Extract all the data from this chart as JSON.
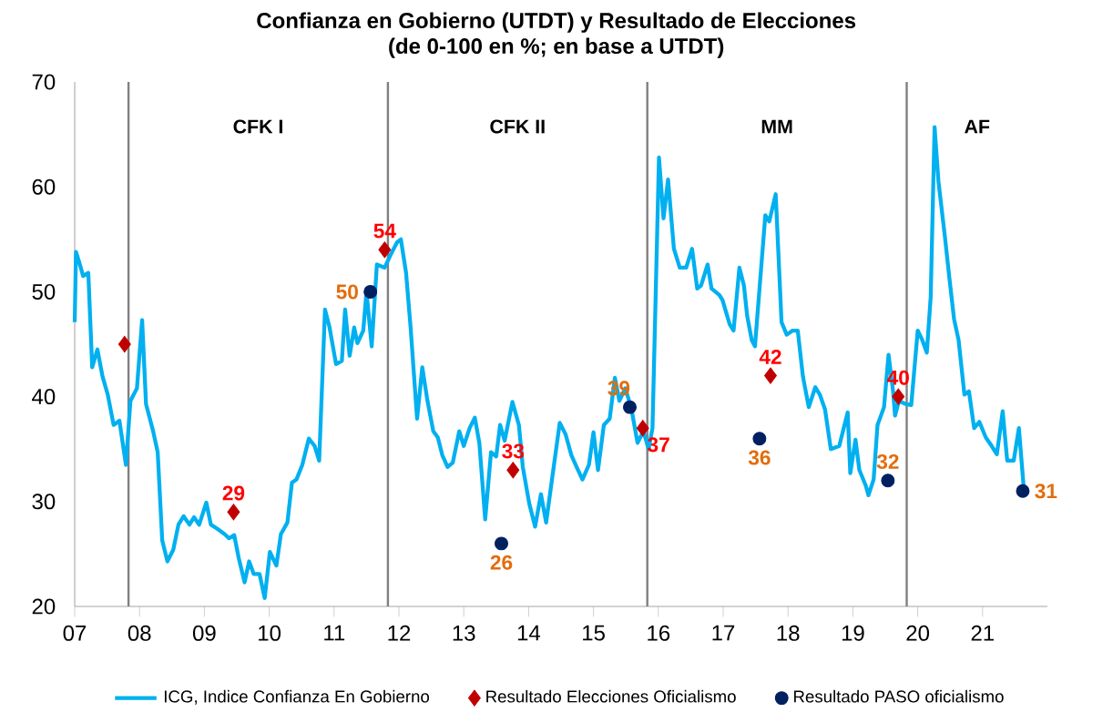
{
  "chart_data": {
    "type": "line",
    "title": "Confianza en Gobierno (UTDT) y Resultado de Elecciones",
    "subtitle": "(de 0-100 en %; en base a UTDT)",
    "xlim": [
      2007,
      2022
    ],
    "ylim": [
      20,
      70
    ],
    "xticks": [
      {
        "value": 2007,
        "label": "07"
      },
      {
        "value": 2008,
        "label": "08"
      },
      {
        "value": 2009,
        "label": "09"
      },
      {
        "value": 2010,
        "label": "10"
      },
      {
        "value": 2011,
        "label": "11"
      },
      {
        "value": 2012,
        "label": "12"
      },
      {
        "value": 2013,
        "label": "13"
      },
      {
        "value": 2014,
        "label": "14"
      },
      {
        "value": 2015,
        "label": "15"
      },
      {
        "value": 2016,
        "label": "16"
      },
      {
        "value": 2017,
        "label": "17"
      },
      {
        "value": 2018,
        "label": "18"
      },
      {
        "value": 2019,
        "label": "19"
      },
      {
        "value": 2020,
        "label": "20"
      },
      {
        "value": 2021,
        "label": "21"
      }
    ],
    "yticks": [
      20,
      30,
      40,
      50,
      60,
      70
    ],
    "legend": "bottom",
    "series": [
      {
        "name": "ICG, Indice Confianza En Gobierno",
        "color": "#00b0f0",
        "marker": "none",
        "x": [
          2007.0,
          2007.02,
          2007.08,
          2007.13,
          2007.21,
          2007.27,
          2007.35,
          2007.43,
          2007.51,
          2007.6,
          2007.69,
          2007.79,
          2007.86,
          2007.96,
          2008.04,
          2008.1,
          2008.21,
          2008.28,
          2008.35,
          2008.43,
          2008.52,
          2008.6,
          2008.68,
          2008.77,
          2008.84,
          2008.92,
          2009.03,
          2009.1,
          2009.2,
          2009.31,
          2009.38,
          2009.46,
          2009.53,
          2009.62,
          2009.69,
          2009.76,
          2009.85,
          2009.93,
          2010.01,
          2010.11,
          2010.18,
          2010.28,
          2010.35,
          2010.42,
          2010.51,
          2010.61,
          2010.7,
          2010.77,
          2010.86,
          2010.93,
          2011.03,
          2011.12,
          2011.17,
          2011.24,
          2011.31,
          2011.36,
          2011.45,
          2011.5,
          2011.58,
          2011.66,
          2011.78,
          2011.87,
          2011.97,
          2012.03,
          2012.11,
          2012.18,
          2012.28,
          2012.36,
          2012.44,
          2012.53,
          2012.6,
          2012.67,
          2012.75,
          2012.83,
          2012.93,
          2013.0,
          2013.09,
          2013.17,
          2013.24,
          2013.33,
          2013.42,
          2013.5,
          2013.56,
          2013.63,
          2013.75,
          2013.85,
          2013.91,
          2014.01,
          2014.1,
          2014.19,
          2014.27,
          2014.36,
          2014.48,
          2014.57,
          2014.66,
          2014.74,
          2014.83,
          2014.93,
          2015.0,
          2015.07,
          2015.16,
          2015.25,
          2015.33,
          2015.4,
          2015.49,
          2015.58,
          2015.68,
          2015.77,
          2015.85,
          2015.91,
          2016.01,
          2016.08,
          2016.15,
          2016.24,
          2016.33,
          2016.43,
          2016.52,
          2016.6,
          2016.66,
          2016.76,
          2016.82,
          2016.94,
          2016.99,
          2017.1,
          2017.16,
          2017.25,
          2017.32,
          2017.37,
          2017.44,
          2017.49,
          2017.65,
          2017.71,
          2017.81,
          2017.9,
          2017.98,
          2018.07,
          2018.15,
          2018.23,
          2018.32,
          2018.42,
          2018.49,
          2018.57,
          2018.66,
          2018.79,
          2018.92,
          2018.96,
          2019.04,
          2019.1,
          2019.2,
          2019.24,
          2019.32,
          2019.38,
          2019.48,
          2019.55,
          2019.62,
          2019.65,
          2019.71,
          2019.81,
          2019.9,
          2020.0,
          2020.07,
          2020.14,
          2020.2,
          2020.26,
          2020.32,
          2020.42,
          2020.49,
          2020.56,
          2020.63,
          2020.72,
          2020.79,
          2020.87,
          2020.95,
          2021.05,
          2021.14,
          2021.22,
          2021.31,
          2021.38,
          2021.48,
          2021.56,
          2021.64
        ],
        "values": [
          47.1,
          53.8,
          52.6,
          51.5,
          51.8,
          42.8,
          44.5,
          41.9,
          40.2,
          37.3,
          37.7,
          33.5,
          39.6,
          40.8,
          47.3,
          39.3,
          36.7,
          34.7,
          26.3,
          24.3,
          25.4,
          27.8,
          28.6,
          27.8,
          28.5,
          27.8,
          29.9,
          27.8,
          27.4,
          26.9,
          26.5,
          26.8,
          24.6,
          22.3,
          24.3,
          23.1,
          23.1,
          20.8,
          25.2,
          23.9,
          26.9,
          28.0,
          31.8,
          32.1,
          33.5,
          36.0,
          35.3,
          33.9,
          48.3,
          46.6,
          43.1,
          43.4,
          48.3,
          43.9,
          46.6,
          45.1,
          46.3,
          50.0,
          44.8,
          52.6,
          52.3,
          53.5,
          54.7,
          55.0,
          51.8,
          46.6,
          37.9,
          42.8,
          39.6,
          36.7,
          36.1,
          34.4,
          33.3,
          33.7,
          36.7,
          35.3,
          37.0,
          38.0,
          35.6,
          28.3,
          34.7,
          34.3,
          37.3,
          35.8,
          39.5,
          37.3,
          33.3,
          29.8,
          27.6,
          30.7,
          28.0,
          32.1,
          37.5,
          36.4,
          34.4,
          33.3,
          32.1,
          33.5,
          36.6,
          33.0,
          37.3,
          37.9,
          41.8,
          39.6,
          40.8,
          39.0,
          35.6,
          36.7,
          35.0,
          37.0,
          62.8,
          57.0,
          60.7,
          54.1,
          52.3,
          52.3,
          54.1,
          50.3,
          50.6,
          52.6,
          50.3,
          49.7,
          49.2,
          46.9,
          46.3,
          52.3,
          50.6,
          47.7,
          45.4,
          44.8,
          57.3,
          56.7,
          59.3,
          47.1,
          45.9,
          46.3,
          46.3,
          41.9,
          39.0,
          40.9,
          40.2,
          38.8,
          35.0,
          35.3,
          38.5,
          32.7,
          35.9,
          33.0,
          31.5,
          30.6,
          32.1,
          37.3,
          39.0,
          44.0,
          40.5,
          38.2,
          39.6,
          39.3,
          39.2,
          46.3,
          45.4,
          44.2,
          49.5,
          65.7,
          60.5,
          55.2,
          51.2,
          47.4,
          45.4,
          40.2,
          40.5,
          37.0,
          37.6,
          36.1,
          35.3,
          34.5,
          38.6,
          33.9,
          33.9,
          37.0,
          30.9
        ]
      },
      {
        "name": "Resultado Elecciones Oficialismo",
        "type": "scatter",
        "color": "#c00000",
        "marker": "diamond",
        "x": [
          2007.77,
          2009.45,
          2011.78,
          2013.76,
          2015.76,
          2017.73,
          2019.7
        ],
        "values": [
          45,
          29,
          54,
          33,
          37,
          42,
          40
        ],
        "value_labels": [
          null,
          "29",
          "54",
          "33",
          "37",
          "42",
          "40"
        ]
      },
      {
        "name": "Resultado PASO oficialismo",
        "type": "scatter",
        "color": "#002060",
        "marker": "circle",
        "x": [
          2011.56,
          2013.58,
          2015.56,
          2017.56,
          2019.54,
          2021.62
        ],
        "values": [
          50,
          26,
          39,
          36,
          32,
          31
        ],
        "value_labels": [
          "50",
          "26",
          "39",
          "36",
          "32",
          "31"
        ]
      }
    ],
    "ref_lines": [
      {
        "axis": "x",
        "value": 2007.83,
        "color": "#808080"
      },
      {
        "axis": "x",
        "value": 2011.83,
        "color": "#808080"
      },
      {
        "axis": "x",
        "value": 2015.83,
        "color": "#808080"
      },
      {
        "axis": "x",
        "value": 2019.83,
        "color": "#808080"
      }
    ],
    "annotations": [
      "CFK I",
      "CFK II",
      "MM",
      "AF"
    ]
  }
}
